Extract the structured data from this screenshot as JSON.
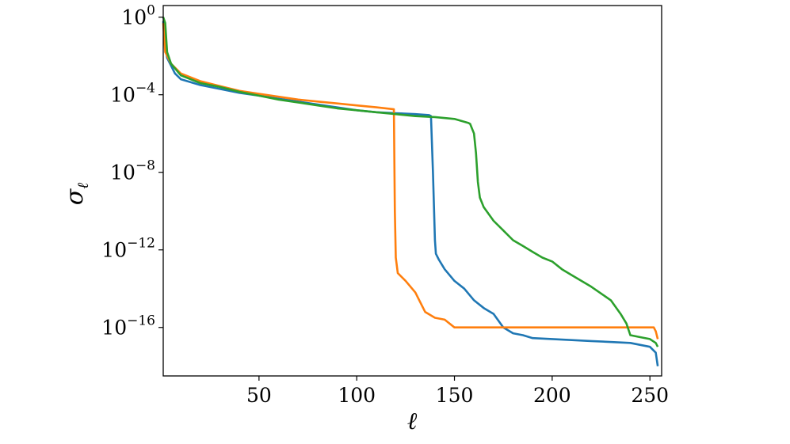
{
  "chart_data": {
    "type": "line",
    "xlabel": "ℓ",
    "ylabel": "σ",
    "ylabel_subscript": "ℓ",
    "xlim": [
      1,
      256
    ],
    "ylim_log10": [
      -18.5,
      0.6
    ],
    "yscale": "log",
    "grid": false,
    "x_ticks": [
      50,
      100,
      150,
      200,
      250
    ],
    "y_ticks": [
      {
        "base": "10",
        "exp": "0",
        "log10": 0
      },
      {
        "base": "10",
        "exp": "−4",
        "log10": -4
      },
      {
        "base": "10",
        "exp": "−8",
        "log10": -8
      },
      {
        "base": "10",
        "exp": "−12",
        "log10": -12
      },
      {
        "base": "10",
        "exp": "−16",
        "log10": -16
      }
    ],
    "series_log10": [
      {
        "color": "#1f77b4",
        "points": [
          [
            1,
            -0.2
          ],
          [
            2,
            -1.5
          ],
          [
            3,
            -2.1
          ],
          [
            5,
            -2.5
          ],
          [
            7,
            -2.9
          ],
          [
            10,
            -3.2
          ],
          [
            20,
            -3.5
          ],
          [
            30,
            -3.7
          ],
          [
            40,
            -3.9
          ],
          [
            50,
            -4.05
          ],
          [
            60,
            -4.2
          ],
          [
            70,
            -4.35
          ],
          [
            80,
            -4.5
          ],
          [
            90,
            -4.65
          ],
          [
            100,
            -4.8
          ],
          [
            110,
            -4.9
          ],
          [
            120,
            -4.95
          ],
          [
            130,
            -5.0
          ],
          [
            137,
            -5.05
          ],
          [
            138,
            -5.1
          ],
          [
            139,
            -8.0
          ],
          [
            140,
            -11.5
          ],
          [
            140.5,
            -12.2
          ],
          [
            142,
            -12.5
          ],
          [
            145,
            -13.0
          ],
          [
            150,
            -13.6
          ],
          [
            155,
            -14.0
          ],
          [
            160,
            -14.6
          ],
          [
            165,
            -15.0
          ],
          [
            170,
            -15.3
          ],
          [
            175,
            -16.0
          ],
          [
            180,
            -16.3
          ],
          [
            185,
            -16.4
          ],
          [
            190,
            -16.55
          ],
          [
            200,
            -16.6
          ],
          [
            220,
            -16.7
          ],
          [
            240,
            -16.8
          ],
          [
            250,
            -17.0
          ],
          [
            253,
            -17.3
          ],
          [
            254,
            -18.0
          ]
        ]
      },
      {
        "color": "#ff7f0e",
        "points": [
          [
            1,
            -0.3
          ],
          [
            2,
            -1.8
          ],
          [
            5,
            -2.4
          ],
          [
            10,
            -2.9
          ],
          [
            20,
            -3.3
          ],
          [
            30,
            -3.55
          ],
          [
            40,
            -3.8
          ],
          [
            50,
            -3.95
          ],
          [
            60,
            -4.1
          ],
          [
            70,
            -4.25
          ],
          [
            80,
            -4.35
          ],
          [
            90,
            -4.45
          ],
          [
            100,
            -4.55
          ],
          [
            110,
            -4.65
          ],
          [
            119,
            -4.75
          ],
          [
            119.5,
            -10.0
          ],
          [
            120,
            -12.4
          ],
          [
            121,
            -13.2
          ],
          [
            125,
            -13.6
          ],
          [
            130,
            -14.2
          ],
          [
            135,
            -15.2
          ],
          [
            140,
            -15.5
          ],
          [
            145,
            -15.6
          ],
          [
            150,
            -16.0
          ],
          [
            152,
            -16.0
          ],
          [
            200,
            -16.0
          ],
          [
            240,
            -16.0
          ],
          [
            252,
            -16.0
          ],
          [
            253,
            -16.2
          ],
          [
            254,
            -16.6
          ]
        ]
      },
      {
        "color": "#2ca02c",
        "points": [
          [
            1,
            0.0
          ],
          [
            2,
            -0.3
          ],
          [
            3,
            -1.8
          ],
          [
            5,
            -2.4
          ],
          [
            10,
            -3.0
          ],
          [
            20,
            -3.4
          ],
          [
            30,
            -3.6
          ],
          [
            40,
            -3.85
          ],
          [
            50,
            -4.05
          ],
          [
            60,
            -4.25
          ],
          [
            70,
            -4.4
          ],
          [
            80,
            -4.55
          ],
          [
            90,
            -4.7
          ],
          [
            100,
            -4.8
          ],
          [
            110,
            -4.9
          ],
          [
            120,
            -5.0
          ],
          [
            130,
            -5.1
          ],
          [
            140,
            -5.15
          ],
          [
            150,
            -5.25
          ],
          [
            157,
            -5.45
          ],
          [
            158,
            -5.5
          ],
          [
            160,
            -6.0
          ],
          [
            161,
            -7.0
          ],
          [
            162,
            -8.5
          ],
          [
            163,
            -9.3
          ],
          [
            165,
            -9.8
          ],
          [
            170,
            -10.5
          ],
          [
            175,
            -11.0
          ],
          [
            180,
            -11.5
          ],
          [
            185,
            -11.8
          ],
          [
            190,
            -12.1
          ],
          [
            195,
            -12.4
          ],
          [
            200,
            -12.6
          ],
          [
            205,
            -13.0
          ],
          [
            210,
            -13.3
          ],
          [
            220,
            -13.9
          ],
          [
            230,
            -14.6
          ],
          [
            235,
            -15.3
          ],
          [
            238,
            -15.8
          ],
          [
            240,
            -16.4
          ],
          [
            245,
            -16.5
          ],
          [
            250,
            -16.6
          ],
          [
            253,
            -16.8
          ],
          [
            254,
            -17.0
          ]
        ]
      }
    ]
  }
}
